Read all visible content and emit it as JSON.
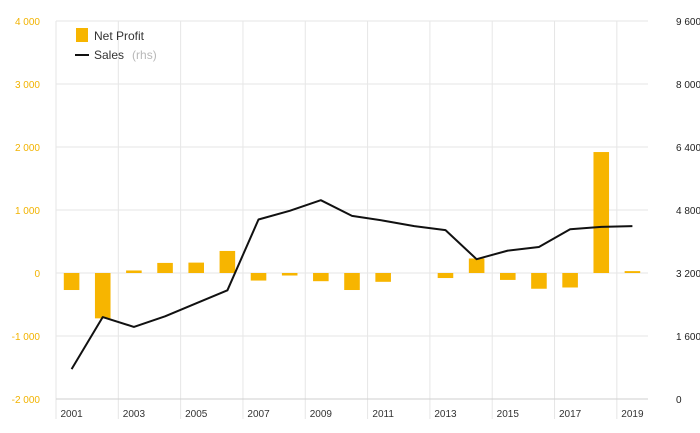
{
  "chart_data": {
    "type": "bar+line",
    "x": [
      "2001",
      "2002",
      "2003",
      "2004",
      "2005",
      "2006",
      "2007",
      "2008",
      "2009",
      "2010",
      "2011",
      "2012",
      "2013",
      "2014",
      "2015",
      "2016",
      "2017",
      "2018",
      "2019"
    ],
    "x_tick_labels": [
      "2001",
      "2003",
      "2005",
      "2007",
      "2009",
      "2011",
      "2013",
      "2015",
      "2017",
      "2019"
    ],
    "series": [
      {
        "name": "Net Profit",
        "type": "bar",
        "axis": "left",
        "color": "#f7b500",
        "values": [
          -270,
          -720,
          40,
          160,
          165,
          350,
          -120,
          -40,
          -130,
          -270,
          -140,
          0,
          -80,
          230,
          -110,
          -250,
          -230,
          1920,
          30
        ]
      },
      {
        "name": "Sales",
        "type": "line",
        "axis": "right",
        "color": "#111111",
        "values": [
          760,
          2080,
          1830,
          2100,
          2430,
          2760,
          4560,
          4780,
          5050,
          4650,
          4530,
          4390,
          4290,
          3550,
          3770,
          3860,
          4310,
          4370,
          4390
        ]
      }
    ],
    "left_axis": {
      "ylim": [
        -2000,
        4000
      ],
      "ticks": [
        -2000,
        -1000,
        0,
        1000,
        2000,
        3000,
        4000
      ],
      "tick_labels": [
        "-2 000",
        "-1 000",
        "0",
        "1 000",
        "2 000",
        "3 000",
        "4 000"
      ],
      "color": "#f2b300"
    },
    "right_axis": {
      "ylim": [
        0,
        9600
      ],
      "ticks": [
        0,
        1600,
        3200,
        4800,
        6400,
        8000,
        9600
      ],
      "tick_labels": [
        "0",
        "1 600",
        "3 200",
        "4 800",
        "6 400",
        "8 000",
        "9 600"
      ]
    },
    "legend": {
      "position": "top-left",
      "items": [
        {
          "label": "Net Profit",
          "note": "",
          "swatch": "bar"
        },
        {
          "label": "Sales",
          "note": "(rhs)",
          "swatch": "line"
        }
      ]
    },
    "grid": true
  }
}
